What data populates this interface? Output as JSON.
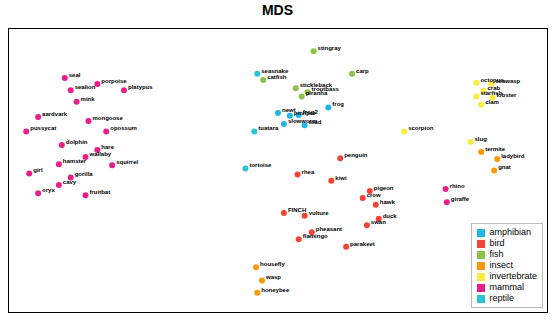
{
  "chart_data": {
    "type": "scatter",
    "title": "MDS",
    "xlim": [
      0.08,
      0.99
    ],
    "ylim": [
      0.22,
      0.91
    ],
    "tick_labels": false,
    "grid": false,
    "legend": "lower right",
    "series": [
      {
        "name": "amphibian",
        "color": "#1eb8e8",
        "labels": [
          "frog",
          "newt",
          "pitviper",
          "frog2",
          "slowworm",
          "toad"
        ],
        "x": [
          0.62,
          0.535,
          0.555,
          0.57,
          0.545,
          0.58
        ],
        "y": [
          0.718,
          0.705,
          0.698,
          0.7,
          0.678,
          0.675
        ]
      },
      {
        "name": "bird",
        "color": "#f44336",
        "labels": [
          "penguin",
          "rhea",
          "kiwi",
          "pigeon",
          "crow",
          "hawk",
          "FINCH",
          "vulture",
          "duck",
          "swan",
          "pheasant",
          "flamingo",
          "parakeet"
        ],
        "x": [
          0.64,
          0.568,
          0.625,
          0.69,
          0.678,
          0.7,
          0.545,
          0.58,
          0.705,
          0.685,
          0.592,
          0.57,
          0.65
        ],
        "y": [
          0.595,
          0.555,
          0.54,
          0.515,
          0.498,
          0.482,
          0.462,
          0.455,
          0.448,
          0.432,
          0.415,
          0.398,
          0.38
        ]
      },
      {
        "name": "fish",
        "color": "#8bc34a",
        "labels": [
          "stingray",
          "catfish",
          "carp",
          "stickleback",
          "troutbass",
          "piranha"
        ],
        "x": [
          0.595,
          0.51,
          0.66,
          0.565,
          0.585,
          0.575
        ],
        "y": [
          0.855,
          0.785,
          0.8,
          0.765,
          0.755,
          0.745
        ]
      },
      {
        "name": "insect",
        "color": "#ff9800",
        "labels": [
          "termite",
          "ladybird",
          "gnat",
          "housefly",
          "wasp",
          "honeybee"
        ],
        "x": [
          0.878,
          0.905,
          0.9,
          0.498,
          0.508,
          0.5
        ],
        "y": [
          0.61,
          0.593,
          0.565,
          0.33,
          0.298,
          0.268
        ]
      },
      {
        "name": "invertebrate",
        "color": "#ffeb3b",
        "labels": [
          "octopus",
          "seawasp",
          "crab",
          "starfish",
          "lobster",
          "clam",
          "scorpion",
          "slug"
        ],
        "x": [
          0.87,
          0.895,
          0.882,
          0.87,
          0.897,
          0.878,
          0.748,
          0.86
        ],
        "y": [
          0.778,
          0.775,
          0.758,
          0.745,
          0.742,
          0.725,
          0.66,
          0.635
        ]
      },
      {
        "name": "mammal",
        "color": "#e91e8c",
        "labels": [
          "seal",
          "porpoise",
          "sealion",
          "platypus",
          "mink",
          "aardvark",
          "mongoose",
          "pussycat",
          "opossum",
          "dolphin",
          "hare",
          "wallaby",
          "hamster",
          "squirrel",
          "girl",
          "gorilla",
          "cavy",
          "oryx",
          "fruitbat",
          "rhino",
          "giraffe"
        ],
        "x": [
          0.175,
          0.23,
          0.185,
          0.275,
          0.195,
          0.13,
          0.215,
          0.11,
          0.245,
          0.17,
          0.23,
          0.21,
          0.165,
          0.255,
          0.115,
          0.185,
          0.165,
          0.13,
          0.21,
          0.818,
          0.82
        ],
        "y": [
          0.79,
          0.775,
          0.76,
          0.76,
          0.732,
          0.695,
          0.685,
          0.66,
          0.66,
          0.627,
          0.615,
          0.598,
          0.58,
          0.578,
          0.558,
          0.548,
          0.53,
          0.51,
          0.505,
          0.52,
          0.488
        ]
      },
      {
        "name": "reptile",
        "color": "#26c6da",
        "labels": [
          "seasnake",
          "tuatara",
          "tortoise"
        ],
        "x": [
          0.5,
          0.495,
          0.48
        ],
        "y": [
          0.8,
          0.66,
          0.57
        ]
      }
    ]
  }
}
